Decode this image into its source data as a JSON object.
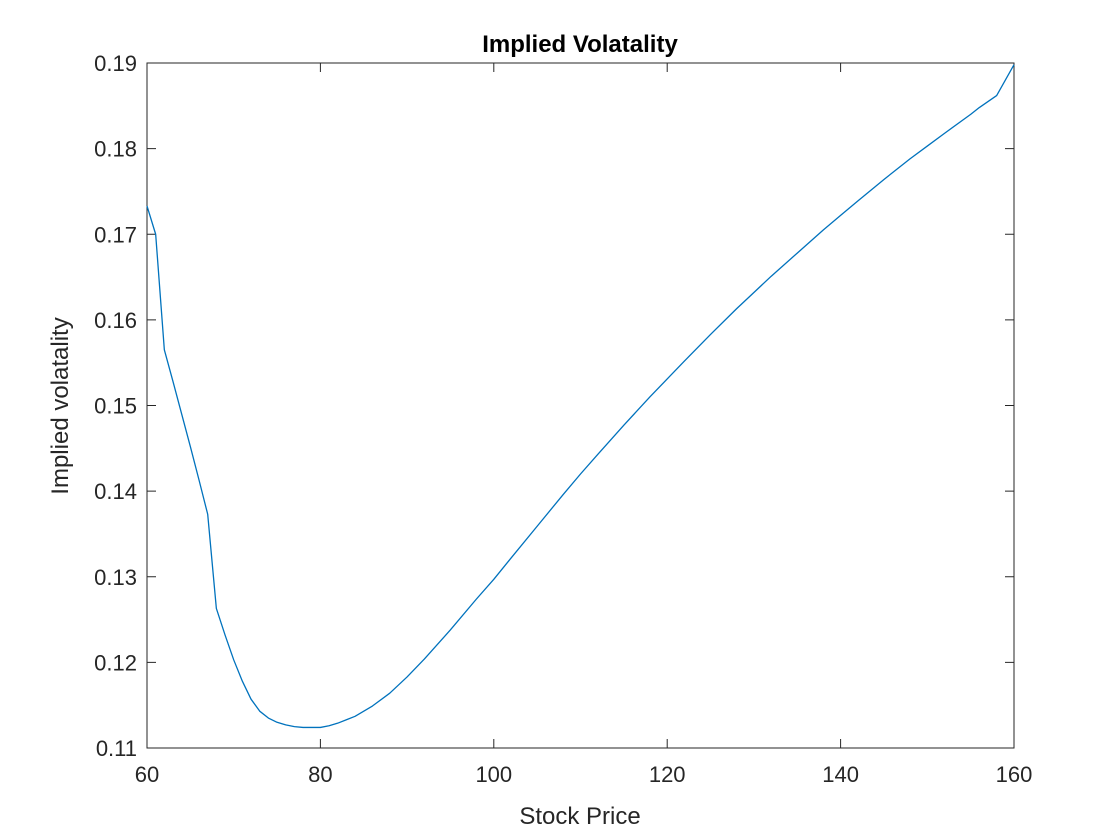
{
  "chart_data": {
    "type": "line",
    "title": "Implied Volatality",
    "xlabel": "Stock Price",
    "ylabel": "Implied volatality",
    "xlim": [
      60,
      160
    ],
    "ylim": [
      0.11,
      0.19
    ],
    "xticks": [
      60,
      80,
      100,
      120,
      140,
      160
    ],
    "xtick_labels": [
      "60",
      "80",
      "100",
      "120",
      "140",
      "160"
    ],
    "yticks": [
      0.11,
      0.12,
      0.13,
      0.14,
      0.15,
      0.16,
      0.17,
      0.18,
      0.19
    ],
    "ytick_labels": [
      "0.11",
      "0.12",
      "0.13",
      "0.14",
      "0.15",
      "0.16",
      "0.17",
      "0.18",
      "0.19"
    ],
    "grid": false,
    "box": true,
    "colors": {
      "line": "#0072BD",
      "axis": "#262626",
      "title": "#000000",
      "background": "#ffffff"
    },
    "series": [
      {
        "x": [
          60,
          61,
          62,
          63,
          64,
          65,
          66,
          67,
          68,
          69,
          70,
          71,
          72,
          73,
          74,
          75,
          76,
          77,
          78,
          79,
          80,
          81,
          82,
          83,
          84,
          85,
          86,
          88,
          90,
          92,
          95,
          98,
          100,
          102,
          105,
          108,
          110,
          112,
          115,
          118,
          120,
          122,
          125,
          128,
          130,
          132,
          135,
          138,
          140,
          142,
          145,
          148,
          150,
          152,
          155,
          156,
          158,
          160
        ],
        "y": [
          0.1733,
          0.17,
          0.1565,
          0.1528,
          0.149,
          0.1452,
          0.1413,
          0.1373,
          0.1263,
          0.1232,
          0.1203,
          0.1178,
          0.1157,
          0.1143,
          0.1135,
          0.113,
          0.1127,
          0.1125,
          0.1124,
          0.1124,
          0.1124,
          0.1126,
          0.1129,
          0.1133,
          0.1137,
          0.1143,
          0.1149,
          0.1164,
          0.1183,
          0.1204,
          0.1238,
          0.1274,
          0.1297,
          0.1322,
          0.1359,
          0.1396,
          0.142,
          0.1443,
          0.1477,
          0.151,
          0.1531,
          0.1552,
          0.1583,
          0.1613,
          0.1632,
          0.1651,
          0.1678,
          0.1705,
          0.1722,
          0.1739,
          0.1764,
          0.1788,
          0.1803,
          0.1818,
          0.184,
          0.1848,
          0.1862,
          0.1898
        ]
      }
    ]
  }
}
